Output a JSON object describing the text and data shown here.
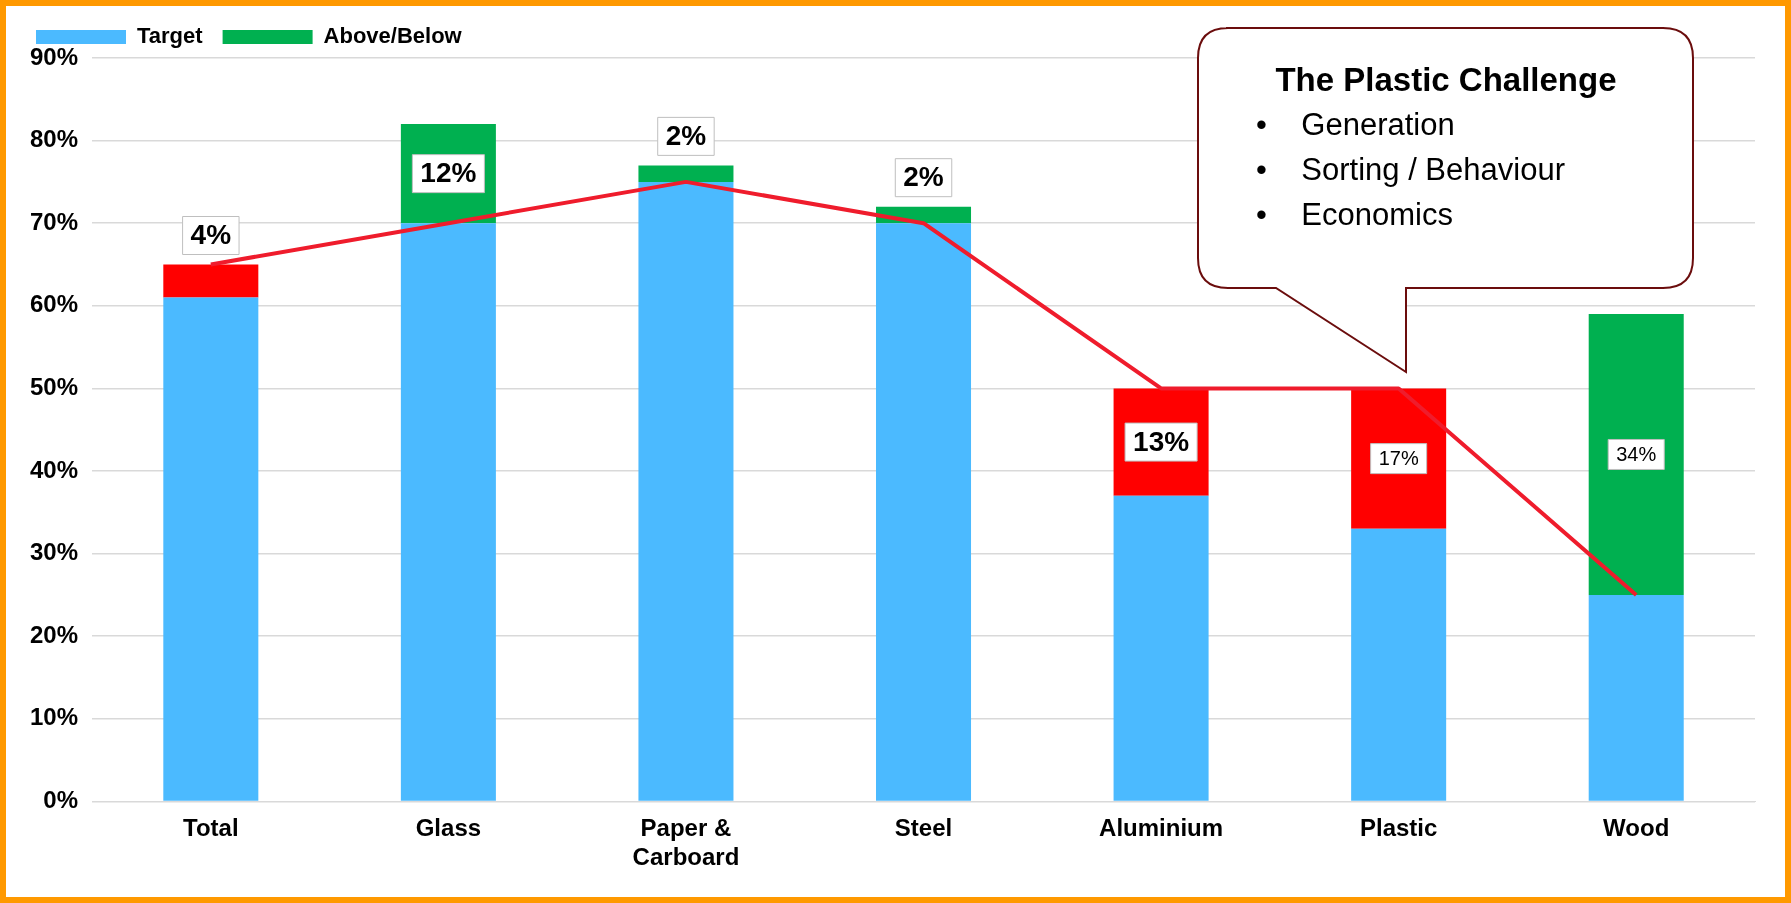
{
  "chart_data": {
    "type": "bar",
    "stacked": true,
    "categories": [
      "Total",
      "Glass",
      "Paper & Carboard",
      "Steel",
      "Aluminium",
      "Plastic",
      "Wood"
    ],
    "series": [
      {
        "name": "Target",
        "color": "#4bbaff",
        "values": [
          61,
          70,
          75,
          70,
          37,
          33,
          25
        ]
      },
      {
        "name": "Above/Below",
        "color": "#00b050",
        "colors": [
          "#ff0000",
          "#00b050",
          "#00b050",
          "#00b050",
          "#ff0000",
          "#ff0000",
          "#00b050"
        ],
        "values": [
          4,
          12,
          2,
          2,
          13,
          17,
          34
        ],
        "value_labels": [
          "4%",
          "12%",
          "2%",
          "2%",
          "13%",
          "17%",
          "34%"
        ]
      },
      {
        "type": "line",
        "color": "#ef1c2c",
        "values": [
          65,
          70,
          75,
          70,
          50,
          50,
          25
        ]
      }
    ],
    "ylim": [
      0,
      90
    ],
    "yticks": [
      {
        "value": 0,
        "label": "0%"
      },
      {
        "value": 10,
        "label": "10%"
      },
      {
        "value": 20,
        "label": "20%"
      },
      {
        "value": 30,
        "label": "30%"
      },
      {
        "value": 40,
        "label": "40%"
      },
      {
        "value": 50,
        "label": "50%"
      },
      {
        "value": 60,
        "label": "60%"
      },
      {
        "value": 70,
        "label": "70%"
      },
      {
        "value": 80,
        "label": "80%"
      },
      {
        "value": 90,
        "label": "90%"
      }
    ],
    "grid": "y",
    "legend": "top left",
    "marker": "none",
    "annotations": [
      "The Plastic Challenge",
      "•    Generation",
      "•    Sorting / Behaviour",
      "•    Economics"
    ]
  }
}
